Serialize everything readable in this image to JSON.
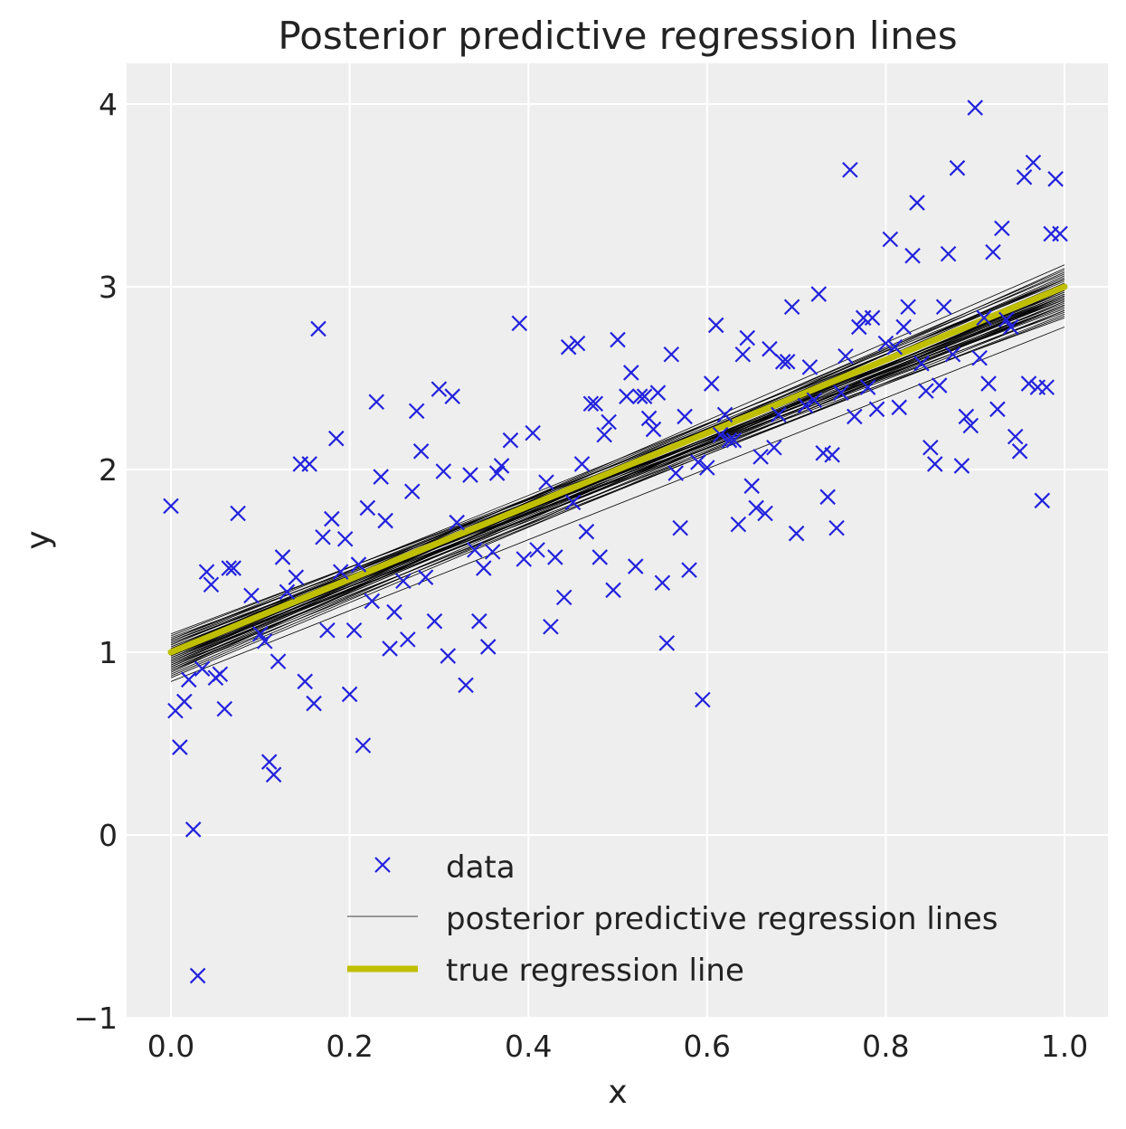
{
  "chart_data": {
    "type": "scatter",
    "title": "Posterior predictive regression lines",
    "xlabel": "x",
    "ylabel": "y",
    "xlim": [
      -0.05,
      1.05
    ],
    "ylim": [
      -1.0,
      4.2
    ],
    "xticks": [
      0.0,
      0.2,
      0.4,
      0.6,
      0.8,
      1.0
    ],
    "xtick_labels": [
      "0.0",
      "0.2",
      "0.4",
      "0.6",
      "0.8",
      "1.0"
    ],
    "yticks": [
      -1,
      0,
      1,
      2,
      3,
      4
    ],
    "ytick_labels": [
      "−1",
      "0",
      "1",
      "2",
      "3",
      "4"
    ],
    "grid": true,
    "legend_position": "lower-center",
    "colors": {
      "background": "#eeeeee",
      "grid": "#ffffff",
      "data": "#2222dd",
      "posterior": "#000000",
      "true_line": "#bfbf00"
    },
    "series": [
      {
        "name": "data",
        "type": "scatter",
        "marker": "x",
        "points": [
          [
            0.0,
            1.8
          ],
          [
            0.005,
            0.68
          ],
          [
            0.01,
            0.48
          ],
          [
            0.015,
            0.73
          ],
          [
            0.02,
            0.85
          ],
          [
            0.025,
            0.03
          ],
          [
            0.03,
            -0.77
          ],
          [
            0.035,
            0.91
          ],
          [
            0.04,
            1.44
          ],
          [
            0.045,
            1.37
          ],
          [
            0.05,
            0.86
          ],
          [
            0.055,
            0.88
          ],
          [
            0.06,
            0.69
          ],
          [
            0.065,
            1.46
          ],
          [
            0.07,
            1.46
          ],
          [
            0.075,
            1.76
          ],
          [
            0.09,
            1.31
          ],
          [
            0.1,
            1.1
          ],
          [
            0.105,
            1.06
          ],
          [
            0.11,
            0.4
          ],
          [
            0.115,
            0.33
          ],
          [
            0.12,
            0.95
          ],
          [
            0.125,
            1.52
          ],
          [
            0.13,
            1.33
          ],
          [
            0.14,
            1.41
          ],
          [
            0.145,
            2.03
          ],
          [
            0.15,
            0.84
          ],
          [
            0.155,
            2.03
          ],
          [
            0.16,
            0.72
          ],
          [
            0.165,
            2.77
          ],
          [
            0.17,
            1.63
          ],
          [
            0.175,
            1.12
          ],
          [
            0.18,
            1.73
          ],
          [
            0.185,
            2.17
          ],
          [
            0.19,
            1.44
          ],
          [
            0.195,
            1.62
          ],
          [
            0.2,
            0.77
          ],
          [
            0.205,
            1.12
          ],
          [
            0.21,
            1.48
          ],
          [
            0.215,
            0.49
          ],
          [
            0.22,
            1.79
          ],
          [
            0.225,
            1.28
          ],
          [
            0.23,
            2.37
          ],
          [
            0.235,
            1.96
          ],
          [
            0.24,
            1.72
          ],
          [
            0.245,
            1.02
          ],
          [
            0.25,
            1.22
          ],
          [
            0.26,
            1.39
          ],
          [
            0.265,
            1.07
          ],
          [
            0.27,
            1.88
          ],
          [
            0.275,
            2.32
          ],
          [
            0.28,
            2.1
          ],
          [
            0.285,
            1.41
          ],
          [
            0.295,
            1.17
          ],
          [
            0.3,
            2.44
          ],
          [
            0.305,
            1.99
          ],
          [
            0.31,
            0.98
          ],
          [
            0.315,
            2.4
          ],
          [
            0.32,
            1.71
          ],
          [
            0.33,
            0.82
          ],
          [
            0.335,
            1.97
          ],
          [
            0.34,
            1.56
          ],
          [
            0.345,
            1.17
          ],
          [
            0.35,
            1.46
          ],
          [
            0.355,
            1.03
          ],
          [
            0.36,
            1.55
          ],
          [
            0.365,
            1.98
          ],
          [
            0.37,
            2.02
          ],
          [
            0.38,
            2.16
          ],
          [
            0.39,
            2.8
          ],
          [
            0.395,
            1.51
          ],
          [
            0.405,
            2.2
          ],
          [
            0.41,
            1.56
          ],
          [
            0.42,
            1.93
          ],
          [
            0.425,
            1.14
          ],
          [
            0.43,
            1.52
          ],
          [
            0.44,
            1.3
          ],
          [
            0.445,
            2.67
          ],
          [
            0.45,
            1.82
          ],
          [
            0.455,
            2.69
          ],
          [
            0.46,
            2.03
          ],
          [
            0.465,
            1.66
          ],
          [
            0.47,
            2.36
          ],
          [
            0.475,
            2.36
          ],
          [
            0.48,
            1.52
          ],
          [
            0.485,
            2.19
          ],
          [
            0.49,
            2.26
          ],
          [
            0.495,
            1.34
          ],
          [
            0.5,
            2.71
          ],
          [
            0.51,
            2.4
          ],
          [
            0.515,
            2.53
          ],
          [
            0.52,
            1.47
          ],
          [
            0.525,
            2.4
          ],
          [
            0.53,
            2.4
          ],
          [
            0.535,
            2.28
          ],
          [
            0.54,
            2.22
          ],
          [
            0.545,
            2.42
          ],
          [
            0.55,
            1.38
          ],
          [
            0.555,
            1.05
          ],
          [
            0.56,
            2.63
          ],
          [
            0.565,
            1.98
          ],
          [
            0.57,
            1.68
          ],
          [
            0.575,
            2.29
          ],
          [
            0.58,
            1.45
          ],
          [
            0.59,
            2.04
          ],
          [
            0.595,
            0.74
          ],
          [
            0.6,
            2.01
          ],
          [
            0.605,
            2.47
          ],
          [
            0.61,
            2.79
          ],
          [
            0.615,
            2.19
          ],
          [
            0.62,
            2.3
          ],
          [
            0.625,
            2.16
          ],
          [
            0.63,
            2.16
          ],
          [
            0.635,
            1.7
          ],
          [
            0.64,
            2.63
          ],
          [
            0.645,
            2.72
          ],
          [
            0.65,
            1.91
          ],
          [
            0.655,
            1.79
          ],
          [
            0.66,
            2.07
          ],
          [
            0.665,
            1.76
          ],
          [
            0.67,
            2.66
          ],
          [
            0.675,
            2.12
          ],
          [
            0.68,
            2.3
          ],
          [
            0.685,
            2.59
          ],
          [
            0.69,
            2.59
          ],
          [
            0.695,
            2.89
          ],
          [
            0.7,
            1.65
          ],
          [
            0.71,
            2.35
          ],
          [
            0.715,
            2.56
          ],
          [
            0.72,
            2.38
          ],
          [
            0.725,
            2.96
          ],
          [
            0.73,
            2.09
          ],
          [
            0.735,
            1.85
          ],
          [
            0.74,
            2.08
          ],
          [
            0.745,
            1.68
          ],
          [
            0.75,
            2.42
          ],
          [
            0.755,
            2.62
          ],
          [
            0.76,
            3.64
          ],
          [
            0.765,
            2.29
          ],
          [
            0.77,
            2.78
          ],
          [
            0.775,
            2.83
          ],
          [
            0.78,
            2.45
          ],
          [
            0.785,
            2.83
          ],
          [
            0.79,
            2.33
          ],
          [
            0.8,
            2.69
          ],
          [
            0.805,
            3.26
          ],
          [
            0.81,
            2.67
          ],
          [
            0.815,
            2.34
          ],
          [
            0.82,
            2.78
          ],
          [
            0.825,
            2.89
          ],
          [
            0.83,
            3.17
          ],
          [
            0.835,
            3.46
          ],
          [
            0.84,
            2.58
          ],
          [
            0.845,
            2.43
          ],
          [
            0.85,
            2.12
          ],
          [
            0.855,
            2.03
          ],
          [
            0.86,
            2.46
          ],
          [
            0.865,
            2.89
          ],
          [
            0.87,
            3.18
          ],
          [
            0.875,
            2.63
          ],
          [
            0.88,
            3.65
          ],
          [
            0.885,
            2.02
          ],
          [
            0.89,
            2.29
          ],
          [
            0.895,
            2.24
          ],
          [
            0.9,
            3.98
          ],
          [
            0.905,
            2.61
          ],
          [
            0.91,
            2.83
          ],
          [
            0.915,
            2.47
          ],
          [
            0.92,
            3.19
          ],
          [
            0.925,
            2.33
          ],
          [
            0.93,
            3.32
          ],
          [
            0.935,
            2.82
          ],
          [
            0.94,
            2.78
          ],
          [
            0.945,
            2.18
          ],
          [
            0.95,
            2.1
          ],
          [
            0.955,
            3.6
          ],
          [
            0.96,
            2.47
          ],
          [
            0.965,
            3.68
          ],
          [
            0.97,
            2.45
          ],
          [
            0.975,
            1.83
          ],
          [
            0.98,
            2.45
          ],
          [
            0.985,
            3.29
          ],
          [
            0.99,
            3.59
          ],
          [
            0.995,
            3.29
          ]
        ]
      },
      {
        "name": "posterior predictive regression lines",
        "type": "line",
        "lines": [
          [
            0.92,
            2.95
          ],
          [
            0.95,
            2.9
          ],
          [
            0.97,
            3.02
          ],
          [
            1.02,
            2.94
          ],
          [
            1.08,
            2.88
          ],
          [
            0.9,
            3.06
          ],
          [
            0.98,
            2.97
          ],
          [
            1.04,
            2.99
          ],
          [
            0.94,
            2.92
          ],
          [
            1.06,
            2.86
          ],
          [
            0.88,
            2.99
          ],
          [
            1.0,
            3.04
          ],
          [
            0.96,
            2.96
          ],
          [
            1.03,
            2.91
          ],
          [
            0.93,
            3.08
          ],
          [
            1.05,
            2.83
          ],
          [
            0.99,
            2.9
          ],
          [
            1.01,
            3.0
          ],
          [
            0.91,
            2.98
          ],
          [
            1.07,
            2.95
          ],
          [
            0.97,
            2.84
          ],
          [
            0.95,
            3.05
          ],
          [
            1.02,
            3.07
          ],
          [
            0.86,
            2.92
          ],
          [
            1.1,
            2.93
          ],
          [
            0.89,
            3.1
          ],
          [
            1.0,
            2.95
          ],
          [
            0.98,
            2.87
          ],
          [
            1.04,
            3.03
          ],
          [
            0.93,
            2.85
          ],
          [
            0.96,
            3.01
          ],
          [
            1.06,
            3.0
          ],
          [
            0.92,
            3.04
          ],
          [
            1.01,
            2.89
          ],
          [
            0.99,
            3.12
          ],
          [
            1.09,
            2.97
          ],
          [
            0.87,
            2.95
          ],
          [
            0.94,
            2.98
          ],
          [
            1.03,
            2.96
          ],
          [
            0.97,
            2.93
          ],
          [
            1.05,
            2.9
          ],
          [
            0.91,
            2.9
          ],
          [
            1.0,
            2.99
          ],
          [
            0.95,
            2.94
          ],
          [
            1.02,
            3.01
          ],
          [
            0.84,
            2.78
          ],
          [
            0.98,
            3.09
          ],
          [
            1.07,
            3.04
          ],
          [
            0.9,
            2.87
          ],
          [
            1.01,
            2.93
          ]
        ]
      },
      {
        "name": "true regression line",
        "type": "line",
        "x": [
          0.0,
          1.0
        ],
        "y": [
          1.0,
          3.0
        ]
      }
    ]
  }
}
